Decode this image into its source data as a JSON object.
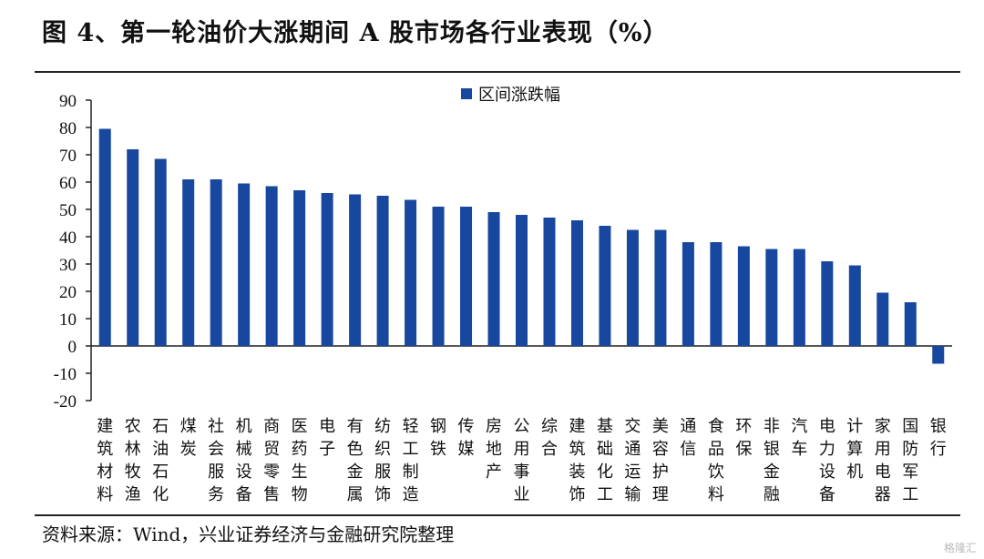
{
  "title": "图 4、第一轮油价大涨期间 A 股市场各行业表现（%）",
  "source": "资料来源：Wind，兴业证券经济与金融研究院整理",
  "watermark": "格隆汇",
  "colors": {
    "bar": "#17479e",
    "axis": "#222222"
  },
  "chart_data": {
    "type": "bar",
    "categories": [
      "建筑材料",
      "农林牧渔",
      "石油石化",
      "煤炭",
      "社会服务",
      "机械设备",
      "商贸零售",
      "医药生物",
      "电子",
      "有色金属",
      "纺织服饰",
      "轻工制造",
      "钢铁",
      "传媒",
      "房地产",
      "公用事业",
      "综合",
      "建筑装饰",
      "基础化工",
      "交通运输",
      "美容护理",
      "通信",
      "食品饮料",
      "环保",
      "非银金融",
      "汽车",
      "电力设备",
      "计算机",
      "家用电器",
      "国防军工",
      "银行"
    ],
    "series": [
      {
        "name": "区间涨跌幅",
        "values": [
          79.5,
          72,
          68.5,
          61,
          61,
          59.5,
          58.5,
          57,
          56,
          55.5,
          55,
          53.5,
          51,
          51,
          49,
          48,
          47,
          46,
          44,
          42.5,
          42.5,
          38,
          38,
          36.5,
          35.5,
          35.5,
          31,
          29.5,
          19.5,
          16,
          -6.5
        ]
      }
    ],
    "yticks": [
      90,
      80,
      70,
      60,
      50,
      40,
      30,
      20,
      10,
      0,
      -10,
      -20
    ],
    "ylim": [
      -20,
      90
    ],
    "grid": false,
    "legend_position": "top-center"
  }
}
